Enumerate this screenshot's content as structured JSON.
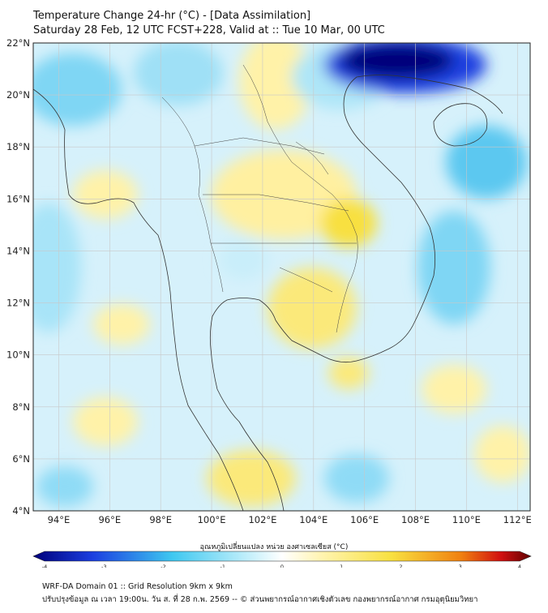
{
  "title": {
    "line1": "Temperature Change 24-hr (°C) - [Data Assimilation]",
    "line2": "Saturday 28 Feb, 12 UTC FCST+228, Valid at :: Tue 10 Mar, 00 UTC"
  },
  "map": {
    "lat_labels": [
      "22°N",
      "20°N",
      "18°N",
      "16°N",
      "14°N",
      "12°N",
      "10°N",
      "8°N",
      "6°N",
      "4°N"
    ],
    "lon_labels": [
      "94°E",
      "96°E",
      "98°E",
      "100°E",
      "102°E",
      "104°E",
      "106°E",
      "108°E",
      "110°E",
      "112°E"
    ],
    "lat_range": [
      4,
      22
    ],
    "lon_range": [
      93,
      112.5
    ]
  },
  "colorbar": {
    "label": "อุณหภูมิเปลี่ยนแปลง หน่วย องศาเซลเซียส (°C)",
    "ticks": [
      "-4",
      "-3",
      "-2",
      "-1",
      "0",
      "1",
      "2",
      "3",
      "4"
    ],
    "min": -4,
    "max": 4,
    "colors": {
      "deep_blue": "#00007a",
      "blue": "#1b3fe0",
      "cyan": "#3fc8f0",
      "light_cyan": "#b8ecfa",
      "white": "#ffffff",
      "light_yellow": "#fff4b0",
      "yellow": "#f8e040",
      "orange": "#f08010",
      "red": "#d01010",
      "dark_red": "#600000"
    }
  },
  "footer": {
    "line1": "WRF-DA Domain 01 :: Grid Resolution 9km x 9km",
    "line2": "ปรับปรุงข้อมูล ณ เวลา 19:00น. วัน ส. ที่ 28 ก.พ. 2569 -- © ส่วนพยากรณ์อากาศเชิงตัวเลข กองพยากรณ์อากาศ กรมอุตุนิยมวิทยา"
  }
}
